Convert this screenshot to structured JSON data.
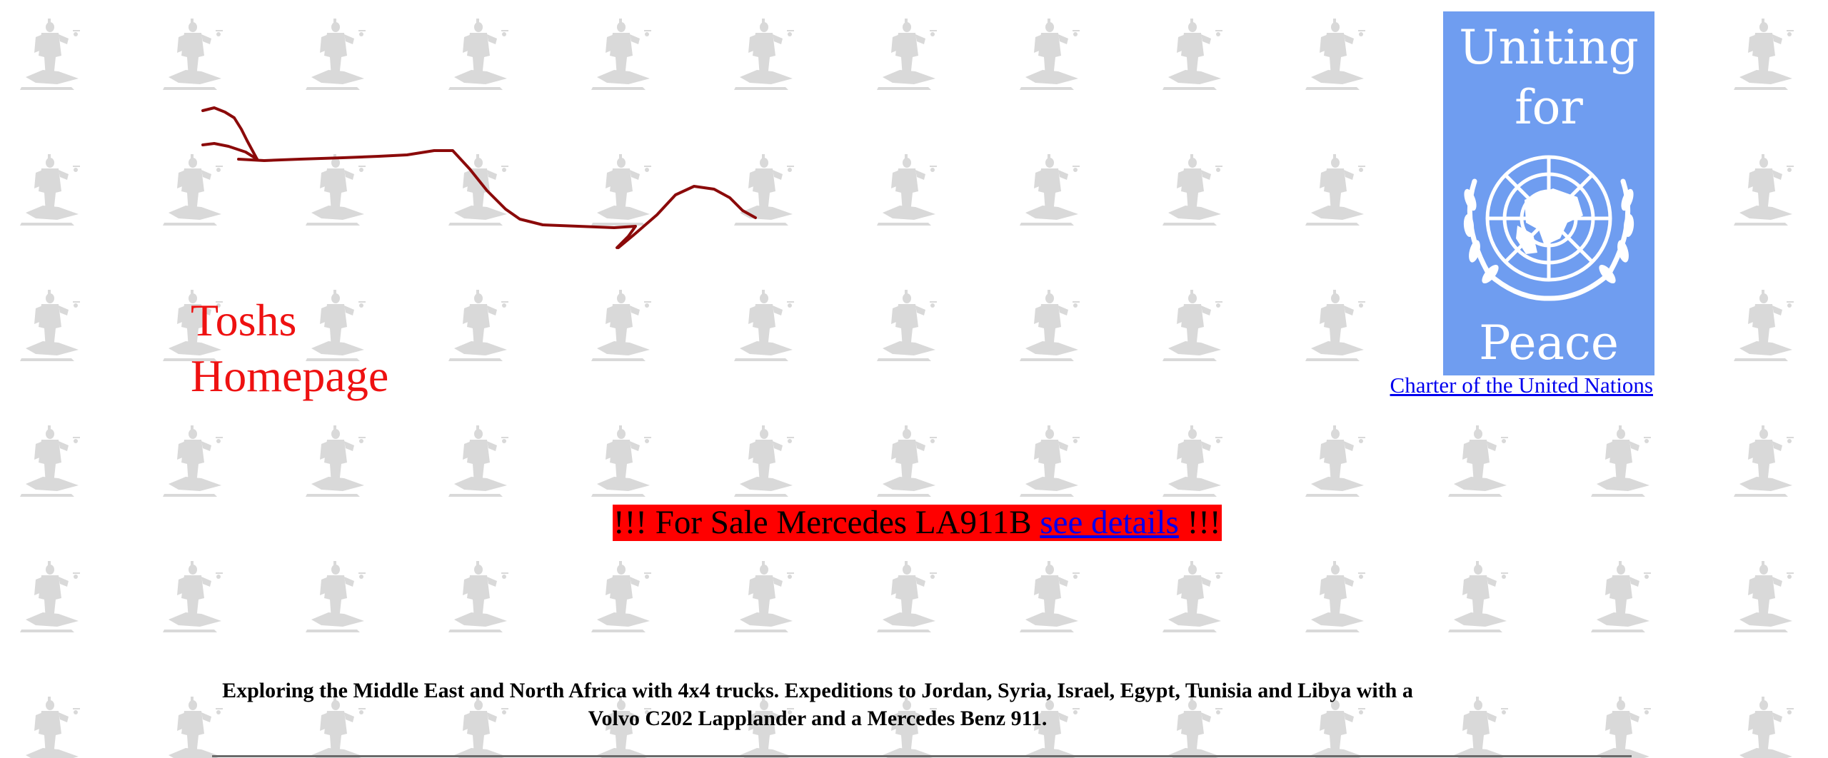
{
  "header": {
    "title_line1": "Toshs",
    "title_line2": "Homepage"
  },
  "un_banner": {
    "word1": "Uniting",
    "word2": "for",
    "word3": "Peace",
    "link_label": "Charter of the United Nations",
    "color": "#6f9df0"
  },
  "sale": {
    "prefix": "!!! For Sale Mercedes LA911B ",
    "link_label": "see details",
    "suffix": " !!!",
    "background": "#ff0000"
  },
  "intro": {
    "text": "Exploring the Middle East and North Africa with 4x4 trucks. Expeditions to Jordan, Syria, Israel, Egypt, Tunisia and Libya with a Volvo C202 Lapplander and a Mercedes Benz 911."
  },
  "colors": {
    "title": "#ee1111",
    "route": "#8b0a0a",
    "link": "#0000ee",
    "pattern": "#d7d7d7"
  }
}
